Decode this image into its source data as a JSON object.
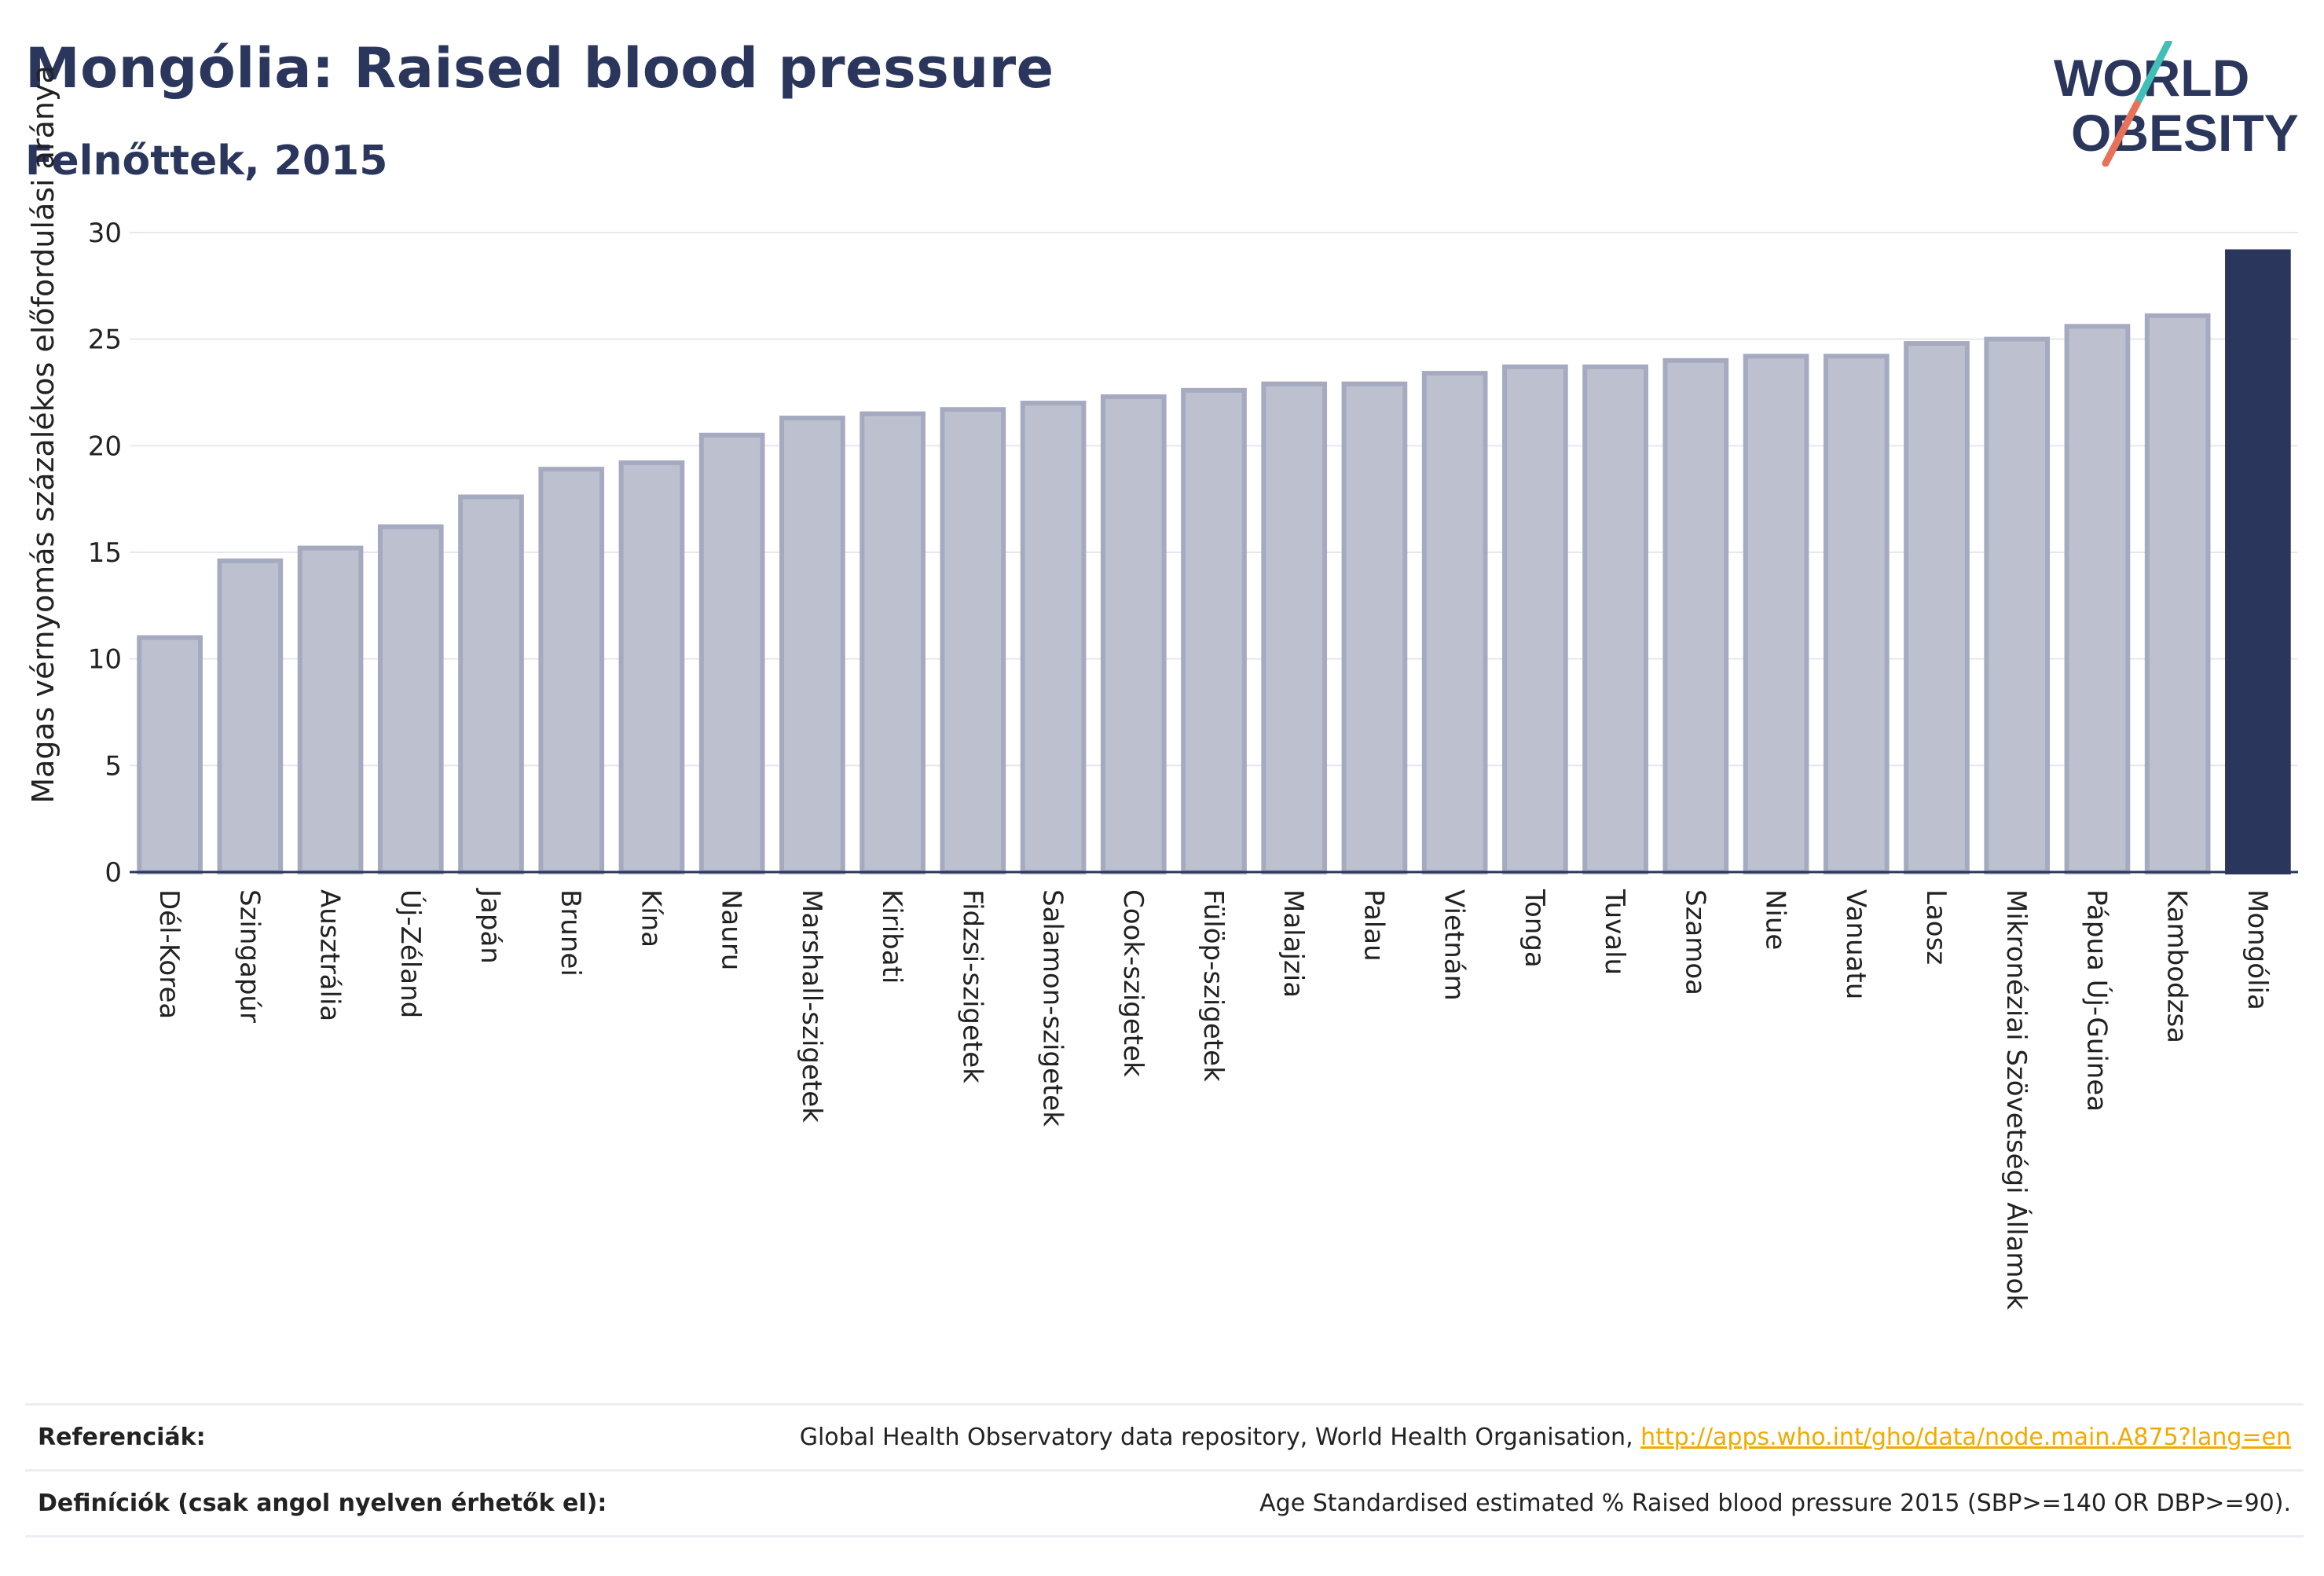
{
  "header": {
    "title": "Mongólia: Raised blood pressure",
    "subtitle": "Felnőttek, 2015"
  },
  "logo": {
    "line1": "WORLD",
    "line2": "OBESITY",
    "colors": {
      "text": "#2b365c",
      "slash_top": "#3fbfb7",
      "slash_bottom": "#e8715a"
    }
  },
  "colors": {
    "bar_fill": "#bdc1cf",
    "bar_stroke": "#a5aac0",
    "highlight": "#2b365c",
    "grid": "#e6e8ee",
    "axis": "#2b365c"
  },
  "chart_data": {
    "type": "bar",
    "title": "Mongólia: Raised blood pressure",
    "subtitle": "Felnőttek, 2015",
    "xlabel": "",
    "ylabel": "Magas vérnyomás százalékos előfordulási aránya",
    "ylim": [
      0,
      30
    ],
    "yticks": [
      0,
      5,
      10,
      15,
      20,
      25,
      30
    ],
    "grid": true,
    "highlight_category": "Mongólia",
    "categories": [
      "Dél-Korea",
      "Szingapúr",
      "Ausztrália",
      "Új-Zéland",
      "Japán",
      "Brunei",
      "Kína",
      "Nauru",
      "Marshall-szigetek",
      "Kiribati",
      "Fidzsi-szigetek",
      "Salamon-szigetek",
      "Cook-szigetek",
      "Fülöp-szigetek",
      "Malajzia",
      "Palau",
      "Vietnám",
      "Tonga",
      "Tuvalu",
      "Szamoa",
      "Niue",
      "Vanuatu",
      "Laosz",
      "Mikronéziai Szövetségi Államok",
      "Pápua Új-Guinea",
      "Kambodzsa",
      "Mongólia"
    ],
    "values": [
      11.0,
      14.6,
      15.2,
      16.2,
      17.6,
      18.9,
      19.2,
      20.5,
      21.3,
      21.5,
      21.7,
      22.0,
      22.3,
      22.6,
      22.9,
      22.9,
      23.4,
      23.7,
      23.7,
      24.0,
      24.2,
      24.2,
      24.8,
      25.0,
      25.6,
      26.1,
      29.1
    ]
  },
  "footer": {
    "references_label": "Referenciák:",
    "references_text": "Global Health Observatory data repository, World Health Organisation, ",
    "references_link": "http://apps.who.int/gho/data/node.main.A875?lang=en",
    "definitions_label": "Definíciók (csak angol nyelven érhetők el):",
    "definitions_text": "Age Standardised estimated % Raised blood pressure 2015 (SBP>=140 OR DBP>=90)."
  }
}
